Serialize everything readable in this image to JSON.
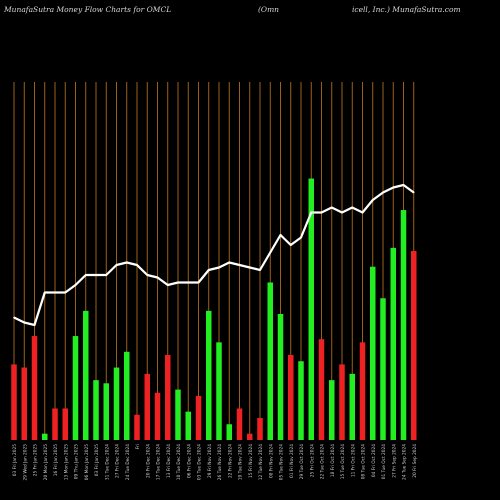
{
  "header": {
    "title_left": "MunafaSutra  Money Flow  Charts for OMCL",
    "title_mid": "(Omn",
    "title_right": "icell,  Inc.) MunafaSutra.com"
  },
  "colors": {
    "background": "#000000",
    "grid": "#b06a1a",
    "up_bar": "#22ee22",
    "down_bar": "#ee2222",
    "price_line": "#ffffff",
    "tick_text": "#cccccc"
  },
  "chart_data": {
    "type": "bar",
    "title": "MunafaSutra Money Flow Charts for OMCL (Omnicell, Inc.) MunafaSutra.com",
    "grid": true,
    "series": [
      {
        "values": [
          24,
          23,
          33,
          2,
          10,
          10,
          33,
          41,
          19,
          18,
          23,
          28,
          8,
          21,
          15,
          27,
          16,
          9,
          14,
          41,
          31,
          5,
          10,
          2,
          7,
          50,
          40,
          27,
          25,
          83,
          32,
          19,
          24,
          21,
          31,
          55,
          45,
          61,
          73,
          60
        ],
        "colors": [
          "red",
          "red",
          "red",
          "green",
          "red",
          "red",
          "green",
          "green",
          "green",
          "green",
          "green",
          "green",
          "red",
          "red",
          "red",
          "red",
          "green",
          "green",
          "red",
          "green",
          "green",
          "green",
          "red",
          "red",
          "red",
          "green",
          "green",
          "red",
          "green",
          "green",
          "red",
          "green",
          "red",
          "green",
          "red",
          "green",
          "green",
          "green",
          "green",
          "red"
        ]
      },
      {
        "type": "line",
        "values": [
          49,
          47,
          46,
          59,
          59,
          59,
          62,
          66,
          66,
          66,
          70,
          71,
          70,
          66,
          65,
          62,
          63,
          63,
          63,
          68,
          69,
          71,
          70,
          69,
          68,
          75,
          82,
          78,
          81,
          91,
          91,
          93,
          91,
          93,
          91,
          96,
          99,
          101,
          102,
          99
        ]
      }
    ],
    "categories": [
      "03 Fri Jan 2025",
      "29 Wed Jan 2025",
      "25 Fri Jan 2025",
      "20 Mon Jan 2025",
      "16 Fri Jan 2025",
      "13 Mon Jan 2025",
      "09 Thu Jan 2025",
      "06 Mon Jan 2025",
      "03 Fri Jan 2025",
      "31 Tue Dec 2024",
      "27 Fri Dec 2024",
      "24 Tue Dec 2024",
      "Fri",
      "20 Fri Dec 2024",
      "17 Tue Dec 2024",
      "13 Fri Dec 2024",
      "10 Tue Dec 2024",
      "06 Fri Dec 2024",
      "03 Tue Dec 2024",
      "29 Fri Nov 2024",
      "26 Tue Nov 2024",
      "22 Fri Nov 2024",
      "19 Tue Nov 2024",
      "15 Fri Nov 2024",
      "12 Tue Nov 2024",
      "08 Fri Nov 2024",
      "05 Tue Nov 2024",
      "01 Fri Nov 2024",
      "29 Tue Oct 2024",
      "25 Fri Oct 2024",
      "22 Tue Oct 2024",
      "18 Fri Oct 2024",
      "15 Tue Oct 2024",
      "11 Fri Oct 2024",
      "08 Tue Oct 2024",
      "04 Fri Oct 2024",
      "01 Tue Oct 2024",
      "27 Fri Sep 2024",
      "24 Tue Sep 2024",
      "20 Fri Sep 2024"
    ]
  }
}
